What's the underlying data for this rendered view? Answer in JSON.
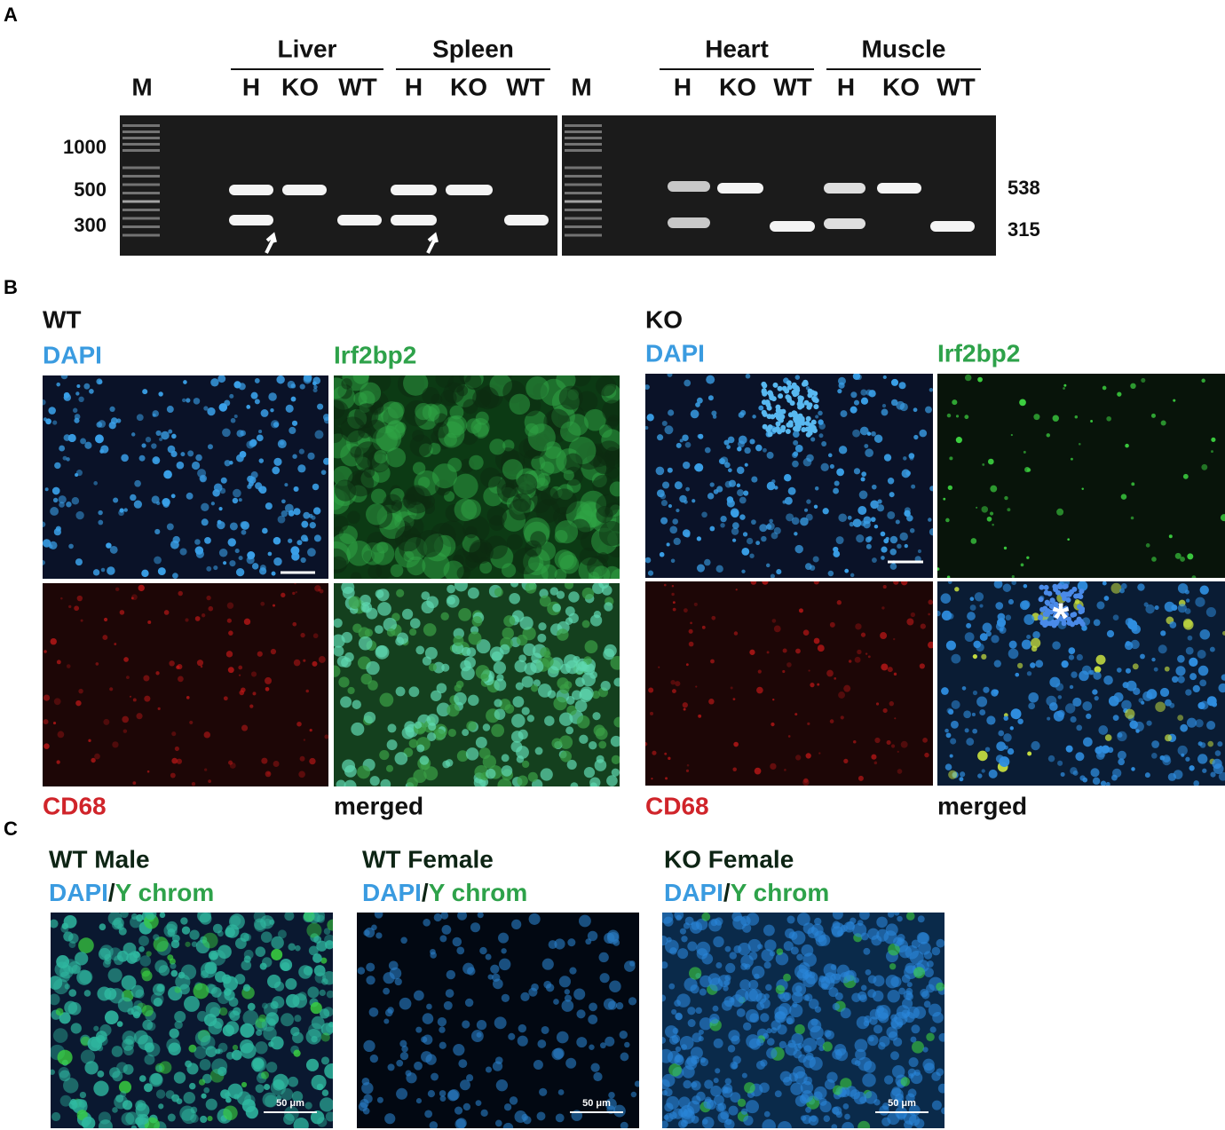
{
  "panel_a": {
    "label": "A",
    "gels": [
      {
        "marker": "M",
        "tissues": [
          "Liver",
          "Spleen"
        ],
        "lanes": [
          "H",
          "KO",
          "WT",
          "H",
          "KO",
          "WT"
        ]
      },
      {
        "marker": "M",
        "tissues": [
          "Heart",
          "Muscle"
        ],
        "lanes": [
          "H",
          "KO",
          "WT",
          "H",
          "KO",
          "WT"
        ]
      }
    ],
    "size_markers": [
      "1000",
      "500",
      "300"
    ],
    "band_sizes": [
      "538",
      "315"
    ]
  },
  "panel_b": {
    "label": "B",
    "groups": [
      {
        "genotype": "WT",
        "channels": [
          "DAPI",
          "Irf2bp2",
          "CD68",
          "merged"
        ]
      },
      {
        "genotype": "KO",
        "channels": [
          "DAPI",
          "Irf2bp2",
          "CD68",
          "merged"
        ],
        "annotation": "*"
      }
    ]
  },
  "panel_c": {
    "label": "C",
    "images": [
      {
        "title": "WT Male",
        "stain": [
          "DAPI",
          "/",
          "Y chrom"
        ],
        "scale_bar": "50 μm"
      },
      {
        "title": "WT Female",
        "stain": [
          "DAPI",
          "/",
          "Y chrom"
        ],
        "scale_bar": "50 μm"
      },
      {
        "title": "KO Female",
        "stain": [
          "DAPI",
          "/",
          "Y chrom"
        ],
        "scale_bar": "50 μm"
      }
    ]
  }
}
